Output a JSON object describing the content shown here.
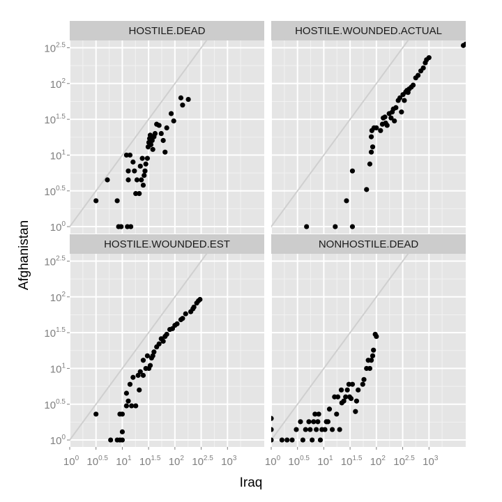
{
  "chart_data": {
    "type": "scatter",
    "xlabel": "Iraq",
    "ylabel": "Afghanistan",
    "x_scale": "log10",
    "y_scale": "log10",
    "xlim": [
      1,
      5000
    ],
    "ylim": [
      0.8,
      400
    ],
    "x_ticks": [
      1,
      3.16,
      10,
      31.6,
      100,
      316,
      1000
    ],
    "y_ticks": [
      1,
      3.16,
      10,
      31.6,
      100,
      316
    ],
    "tick_bases": [
      "10",
      "10",
      "10",
      "10",
      "10",
      "10",
      "10"
    ],
    "x_tick_exps": [
      "0",
      "0.5",
      "1",
      "1.5",
      "2",
      "2.5",
      "3"
    ],
    "y_tick_exps": [
      "0",
      "0.5",
      "1",
      "1.5",
      "2",
      "2.5"
    ],
    "reference_line": "y = x",
    "grid": true,
    "legend": "none",
    "panels": [
      {
        "title": "HOSTILE.DEAD",
        "points": [
          [
            3.16,
            2.3
          ],
          [
            5.2,
            4.5
          ],
          [
            8,
            2.3
          ],
          [
            8.5,
            1
          ],
          [
            9.5,
            1
          ],
          [
            12.5,
            1
          ],
          [
            14.5,
            1
          ],
          [
            13,
            6
          ],
          [
            12,
            10
          ],
          [
            14,
            10
          ],
          [
            13,
            4.5
          ],
          [
            16,
            8
          ],
          [
            17,
            6
          ],
          [
            19,
            4.5
          ],
          [
            18,
            2.9
          ],
          [
            21,
            2.9
          ],
          [
            22,
            7
          ],
          [
            23,
            4.5
          ],
          [
            25,
            3.8
          ],
          [
            26,
            5.2
          ],
          [
            27,
            6
          ],
          [
            24,
            9
          ],
          [
            28,
            7.5
          ],
          [
            30,
            9
          ],
          [
            31,
            13
          ],
          [
            32,
            15
          ],
          [
            33,
            17
          ],
          [
            34,
            19
          ],
          [
            35,
            14
          ],
          [
            37,
            16
          ],
          [
            38,
            12
          ],
          [
            40,
            18
          ],
          [
            42,
            20
          ],
          [
            45,
            27
          ],
          [
            50,
            26
          ],
          [
            55,
            20
          ],
          [
            60,
            16
          ],
          [
            65,
            11
          ],
          [
            70,
            24
          ],
          [
            85,
            38
          ],
          [
            95,
            30
          ],
          [
            130,
            63
          ],
          [
            140,
            50
          ],
          [
            180,
            60
          ]
        ]
      },
      {
        "title": "HOSTILE.WOUNDED.ACTUAL",
        "points": [
          [
            4.7,
            1
          ],
          [
            16.5,
            1
          ],
          [
            27,
            2.3
          ],
          [
            35,
            1
          ],
          [
            35,
            6
          ],
          [
            65,
            3.3
          ],
          [
            75,
            7.5
          ],
          [
            80,
            11
          ],
          [
            85,
            13
          ],
          [
            80,
            18
          ],
          [
            82,
            22
          ],
          [
            90,
            24
          ],
          [
            100,
            24
          ],
          [
            120,
            22
          ],
          [
            130,
            27
          ],
          [
            135,
            33
          ],
          [
            145,
            34
          ],
          [
            150,
            28
          ],
          [
            160,
            26
          ],
          [
            175,
            38
          ],
          [
            190,
            33
          ],
          [
            200,
            40
          ],
          [
            210,
            44
          ],
          [
            220,
            30
          ],
          [
            235,
            46
          ],
          [
            260,
            58
          ],
          [
            280,
            63
          ],
          [
            300,
            40
          ],
          [
            320,
            70
          ],
          [
            340,
            58
          ],
          [
            360,
            76
          ],
          [
            380,
            80
          ],
          [
            400,
            75
          ],
          [
            420,
            84
          ],
          [
            460,
            89
          ],
          [
            500,
            95
          ],
          [
            560,
            120
          ],
          [
            620,
            130
          ],
          [
            700,
            150
          ],
          [
            780,
            165
          ],
          [
            850,
            195
          ],
          [
            900,
            215
          ],
          [
            1000,
            230
          ],
          [
            4500,
            340
          ],
          [
            5000,
            355
          ]
        ]
      },
      {
        "title": "HOSTILE.WOUNDED.EST",
        "points": [
          [
            3.16,
            2.3
          ],
          [
            6,
            1
          ],
          [
            8,
            1
          ],
          [
            9,
            2.3
          ],
          [
            9,
            1
          ],
          [
            10,
            1
          ],
          [
            10,
            1.3
          ],
          [
            10,
            2.3
          ],
          [
            12,
            3
          ],
          [
            12,
            4.5
          ],
          [
            13,
            3.5
          ],
          [
            14,
            6
          ],
          [
            15,
            3
          ],
          [
            16,
            7.5
          ],
          [
            18,
            3
          ],
          [
            20,
            8
          ],
          [
            21,
            5
          ],
          [
            22,
            9
          ],
          [
            25,
            8
          ],
          [
            25,
            13
          ],
          [
            28,
            10
          ],
          [
            30,
            15
          ],
          [
            32,
            10
          ],
          [
            34,
            11
          ],
          [
            36,
            14
          ],
          [
            38,
            15
          ],
          [
            40,
            17
          ],
          [
            45,
            20
          ],
          [
            50,
            22
          ],
          [
            55,
            26
          ],
          [
            60,
            24
          ],
          [
            65,
            28
          ],
          [
            70,
            30
          ],
          [
            80,
            35
          ],
          [
            90,
            36
          ],
          [
            100,
            40
          ],
          [
            110,
            42
          ],
          [
            130,
            48
          ],
          [
            140,
            50
          ],
          [
            160,
            58
          ],
          [
            200,
            62
          ],
          [
            220,
            68
          ],
          [
            230,
            72
          ],
          [
            260,
            82
          ],
          [
            280,
            88
          ],
          [
            300,
            92
          ]
        ]
      },
      {
        "title": "NONHOSTILE.DEAD",
        "points": [
          [
            1,
            2
          ],
          [
            1,
            1.4
          ],
          [
            1,
            1
          ],
          [
            1.6,
            1
          ],
          [
            2,
            1
          ],
          [
            2.5,
            1
          ],
          [
            3,
            1.4
          ],
          [
            3.6,
            1.8
          ],
          [
            4,
            1
          ],
          [
            4.5,
            1.4
          ],
          [
            5.2,
            1.8
          ],
          [
            5.5,
            1.4
          ],
          [
            6,
            1
          ],
          [
            6.4,
            1.8
          ],
          [
            6.8,
            2.3
          ],
          [
            7.2,
            1.4
          ],
          [
            7.7,
            1.8
          ],
          [
            8,
            2.3
          ],
          [
            8.6,
            1
          ],
          [
            9.2,
            1.4
          ],
          [
            10.5,
            1.4
          ],
          [
            11.2,
            1.8
          ],
          [
            12,
            1.8
          ],
          [
            12.8,
            2.7
          ],
          [
            14.5,
            1.4
          ],
          [
            16,
            4
          ],
          [
            17.5,
            2.3
          ],
          [
            18.5,
            4
          ],
          [
            20,
            1.4
          ],
          [
            21.5,
            5
          ],
          [
            22,
            3.3
          ],
          [
            24,
            3.5
          ],
          [
            26,
            4
          ],
          [
            28,
            5
          ],
          [
            30,
            6
          ],
          [
            31,
            4
          ],
          [
            33,
            3.8
          ],
          [
            35,
            6
          ],
          [
            40,
            2.5
          ],
          [
            42,
            3.5
          ],
          [
            45,
            5
          ],
          [
            55,
            6
          ],
          [
            58,
            7
          ],
          [
            65,
            10
          ],
          [
            70,
            13
          ],
          [
            75,
            10
          ],
          [
            80,
            13
          ],
          [
            85,
            15
          ],
          [
            88,
            18
          ],
          [
            95,
            30
          ],
          [
            100,
            28
          ]
        ]
      }
    ]
  }
}
